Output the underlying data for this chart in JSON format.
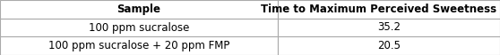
{
  "col_headers": [
    "Sample",
    "Time to Maximum Perceived Sweetness (s)"
  ],
  "rows": [
    [
      "100 ppm sucralose",
      "35.2"
    ],
    [
      "100 ppm sucralose + 20 ppm FMP",
      "20.5"
    ]
  ],
  "header_bg": "#ffffff",
  "row_bg": "#ffffff",
  "border_color": "#aaaaaa",
  "font_size": 8.5,
  "header_font_size": 8.5,
  "col_split": 0.555,
  "fig_width": 5.58,
  "fig_height": 0.62,
  "dpi": 100
}
